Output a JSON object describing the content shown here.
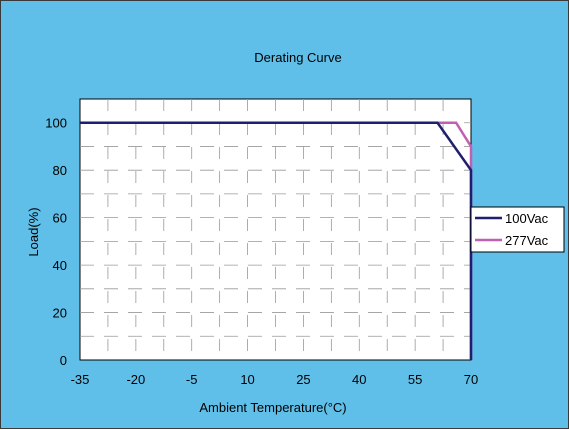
{
  "chart_data": {
    "type": "line",
    "title": "Derating Curve",
    "xlabel": "Ambient Temperature(°C)",
    "ylabel": "Load(%)",
    "x_ticks": [
      -35,
      -20,
      -5,
      10,
      25,
      40,
      55,
      70
    ],
    "x_tick_labels": [
      "-35",
      "-20",
      "-5",
      "10",
      "25",
      "40",
      "55",
      "70"
    ],
    "y_ticks": [
      0,
      20,
      40,
      60,
      80,
      100
    ],
    "y_tick_labels": [
      "0",
      "20",
      "40",
      "60",
      "80",
      "100"
    ],
    "xlim": [
      -35,
      70
    ],
    "ylim": [
      0,
      110
    ],
    "grid": true,
    "legend_position": "right",
    "series": [
      {
        "name": "100Vac",
        "color": "#1f1f6e",
        "points": [
          [
            -35,
            100
          ],
          [
            61,
            100
          ],
          [
            70,
            80
          ],
          [
            70,
            0
          ]
        ]
      },
      {
        "name": "277Vac",
        "color": "#c060b0",
        "points": [
          [
            -35,
            100
          ],
          [
            66,
            100
          ],
          [
            70,
            90
          ],
          [
            70,
            0
          ]
        ]
      }
    ]
  }
}
